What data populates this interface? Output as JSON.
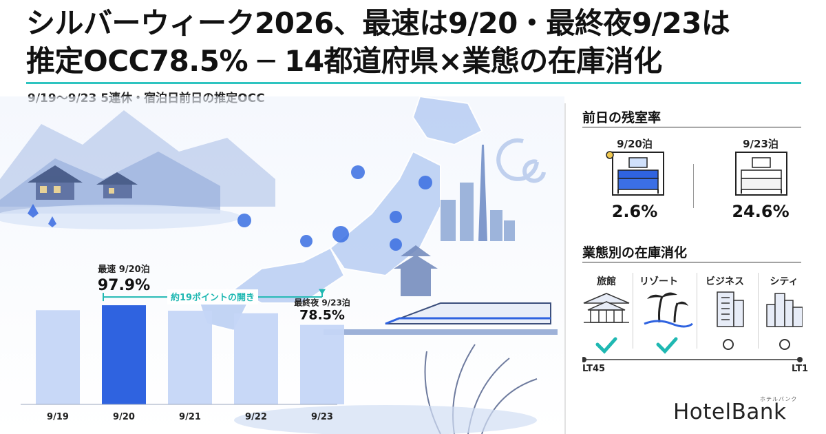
{
  "title_line1": "シルバーウィーク2026、最速は9/20・最終夜9/23は",
  "title_line2": "推定OCC78.5% ─ 14都道府県×業態の在庫消化",
  "subtitle": "9/19〜9/23 5連休・宿泊日前日の推定OCC",
  "chart_data": {
    "type": "bar",
    "title": "9/19〜9/23 5連休・宿泊日前日の推定OCC",
    "categories": [
      "9/19",
      "9/20",
      "9/21",
      "9/22",
      "9/23"
    ],
    "values": [
      93.0,
      97.9,
      92.5,
      90.0,
      78.5
    ],
    "value_unit": "%",
    "axis_visible": false,
    "highlight_index": 1,
    "colors": {
      "default": "#c5d6f7",
      "highlight": "#2f63e0"
    },
    "annotations": {
      "peak": {
        "index": 1,
        "label": "最速 9/20泊",
        "value": "97.9%"
      },
      "last": {
        "index": 4,
        "label": "最終夜 9/23泊",
        "value": "78.5%"
      },
      "gap": {
        "label": "約19ポイントの開き",
        "color": "#1fb8b2"
      }
    }
  },
  "remaining_rate": {
    "title": "前日の残室率",
    "items": [
      {
        "label": "9/20泊",
        "value": "2.6%",
        "icon": "bed-booked-icon"
      },
      {
        "label": "9/23泊",
        "value": "24.6%",
        "icon": "bed-available-icon"
      }
    ]
  },
  "inventory": {
    "title": "業態別の在庫消化",
    "categories": [
      {
        "label": "旅館",
        "icon": "ryokan-icon",
        "mark": "check"
      },
      {
        "label": "リゾート",
        "icon": "palm-tree-icon",
        "mark": "check"
      },
      {
        "label": "ビジネス",
        "icon": "business-building-icon",
        "mark": "circle"
      },
      {
        "label": "シティ",
        "icon": "city-skyline-icon",
        "mark": "circle"
      }
    ],
    "scale_start": "LT45",
    "scale_end": "LT1"
  },
  "logo": {
    "name": "HotelBank",
    "kana": "ホテルバンク"
  },
  "colors": {
    "accent": "#2ec4c0",
    "highlight_blue": "#2f63e0",
    "light_blue": "#c5d6f7",
    "check": "#1fb8b2"
  }
}
